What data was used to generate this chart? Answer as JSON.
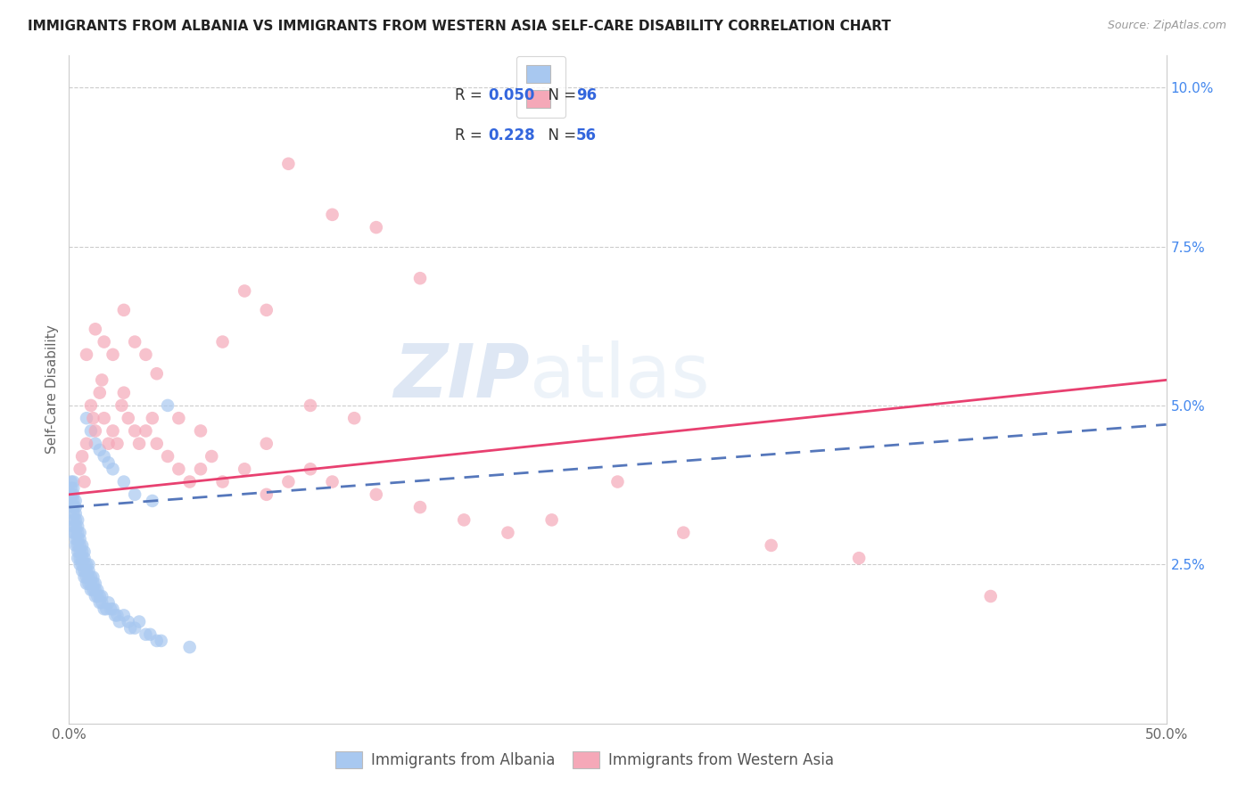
{
  "title": "IMMIGRANTS FROM ALBANIA VS IMMIGRANTS FROM WESTERN ASIA SELF-CARE DISABILITY CORRELATION CHART",
  "source": "Source: ZipAtlas.com",
  "ylabel": "Self-Care Disability",
  "xlim": [
    0.0,
    0.5
  ],
  "ylim": [
    0.0,
    0.105
  ],
  "xtick_positions": [
    0.0,
    0.05,
    0.1,
    0.15,
    0.2,
    0.25,
    0.3,
    0.35,
    0.4,
    0.45,
    0.5
  ],
  "xtick_labels": [
    "0.0%",
    "",
    "",
    "",
    "",
    "",
    "",
    "",
    "",
    "",
    "50.0%"
  ],
  "ytick_positions": [
    0.025,
    0.05,
    0.075,
    0.1
  ],
  "ytick_labels_right": [
    "2.5%",
    "5.0%",
    "7.5%",
    "10.0%"
  ],
  "legend_r1": "0.050",
  "legend_n1": "96",
  "legend_r2": "0.228",
  "legend_n2": "56",
  "color_albania": "#a8c8f0",
  "color_western_asia": "#f5a8b8",
  "color_line_albania": "#5577bb",
  "color_line_western_asia": "#e84070",
  "watermark_zip": "ZIP",
  "watermark_atlas": "atlas",
  "albania_x": [
    0.001,
    0.001,
    0.001,
    0.001,
    0.002,
    0.002,
    0.002,
    0.002,
    0.002,
    0.002,
    0.002,
    0.002,
    0.002,
    0.003,
    0.003,
    0.003,
    0.003,
    0.003,
    0.003,
    0.003,
    0.003,
    0.004,
    0.004,
    0.004,
    0.004,
    0.004,
    0.004,
    0.004,
    0.005,
    0.005,
    0.005,
    0.005,
    0.005,
    0.005,
    0.006,
    0.006,
    0.006,
    0.006,
    0.006,
    0.007,
    0.007,
    0.007,
    0.007,
    0.007,
    0.008,
    0.008,
    0.008,
    0.008,
    0.009,
    0.009,
    0.009,
    0.009,
    0.01,
    0.01,
    0.01,
    0.011,
    0.011,
    0.011,
    0.012,
    0.012,
    0.012,
    0.013,
    0.013,
    0.014,
    0.014,
    0.015,
    0.015,
    0.016,
    0.017,
    0.018,
    0.019,
    0.02,
    0.021,
    0.022,
    0.023,
    0.025,
    0.027,
    0.028,
    0.03,
    0.032,
    0.035,
    0.037,
    0.04,
    0.042,
    0.045,
    0.008,
    0.01,
    0.012,
    0.014,
    0.016,
    0.018,
    0.02,
    0.025,
    0.03,
    0.038,
    0.055
  ],
  "albania_y": [
    0.035,
    0.036,
    0.037,
    0.038,
    0.03,
    0.031,
    0.032,
    0.033,
    0.034,
    0.035,
    0.036,
    0.037,
    0.038,
    0.028,
    0.029,
    0.03,
    0.031,
    0.032,
    0.033,
    0.034,
    0.035,
    0.026,
    0.027,
    0.028,
    0.029,
    0.03,
    0.031,
    0.032,
    0.025,
    0.026,
    0.027,
    0.028,
    0.029,
    0.03,
    0.024,
    0.025,
    0.026,
    0.027,
    0.028,
    0.023,
    0.024,
    0.025,
    0.026,
    0.027,
    0.022,
    0.023,
    0.024,
    0.025,
    0.022,
    0.023,
    0.024,
    0.025,
    0.021,
    0.022,
    0.023,
    0.021,
    0.022,
    0.023,
    0.02,
    0.021,
    0.022,
    0.02,
    0.021,
    0.019,
    0.02,
    0.019,
    0.02,
    0.018,
    0.018,
    0.019,
    0.018,
    0.018,
    0.017,
    0.017,
    0.016,
    0.017,
    0.016,
    0.015,
    0.015,
    0.016,
    0.014,
    0.014,
    0.013,
    0.013,
    0.05,
    0.048,
    0.046,
    0.044,
    0.043,
    0.042,
    0.041,
    0.04,
    0.038,
    0.036,
    0.035,
    0.012
  ],
  "western_asia_x": [
    0.005,
    0.006,
    0.007,
    0.008,
    0.01,
    0.011,
    0.012,
    0.014,
    0.015,
    0.016,
    0.018,
    0.02,
    0.022,
    0.024,
    0.025,
    0.027,
    0.03,
    0.032,
    0.035,
    0.038,
    0.04,
    0.045,
    0.05,
    0.055,
    0.06,
    0.065,
    0.07,
    0.08,
    0.09,
    0.1,
    0.11,
    0.12,
    0.14,
    0.16,
    0.18,
    0.2,
    0.22,
    0.25,
    0.28,
    0.32,
    0.36,
    0.42,
    0.008,
    0.012,
    0.016,
    0.02,
    0.025,
    0.03,
    0.035,
    0.04,
    0.05,
    0.06,
    0.07,
    0.09,
    0.11,
    0.13
  ],
  "western_asia_y": [
    0.04,
    0.042,
    0.038,
    0.044,
    0.05,
    0.048,
    0.046,
    0.052,
    0.054,
    0.048,
    0.044,
    0.046,
    0.044,
    0.05,
    0.052,
    0.048,
    0.046,
    0.044,
    0.046,
    0.048,
    0.044,
    0.042,
    0.04,
    0.038,
    0.04,
    0.042,
    0.038,
    0.04,
    0.036,
    0.038,
    0.04,
    0.038,
    0.036,
    0.034,
    0.032,
    0.03,
    0.032,
    0.038,
    0.03,
    0.028,
    0.026,
    0.02,
    0.058,
    0.062,
    0.06,
    0.058,
    0.065,
    0.06,
    0.058,
    0.055,
    0.048,
    0.046,
    0.06,
    0.044,
    0.05,
    0.048
  ],
  "wa_outliers_x": [
    0.1,
    0.12,
    0.14,
    0.16,
    0.08,
    0.09
  ],
  "wa_outliers_y": [
    0.088,
    0.08,
    0.078,
    0.07,
    0.068,
    0.065
  ],
  "line_albania_x0": 0.0,
  "line_albania_x1": 0.5,
  "line_albania_y0": 0.034,
  "line_albania_y1": 0.047,
  "line_wa_x0": 0.0,
  "line_wa_x1": 0.5,
  "line_wa_y0": 0.036,
  "line_wa_y1": 0.054
}
